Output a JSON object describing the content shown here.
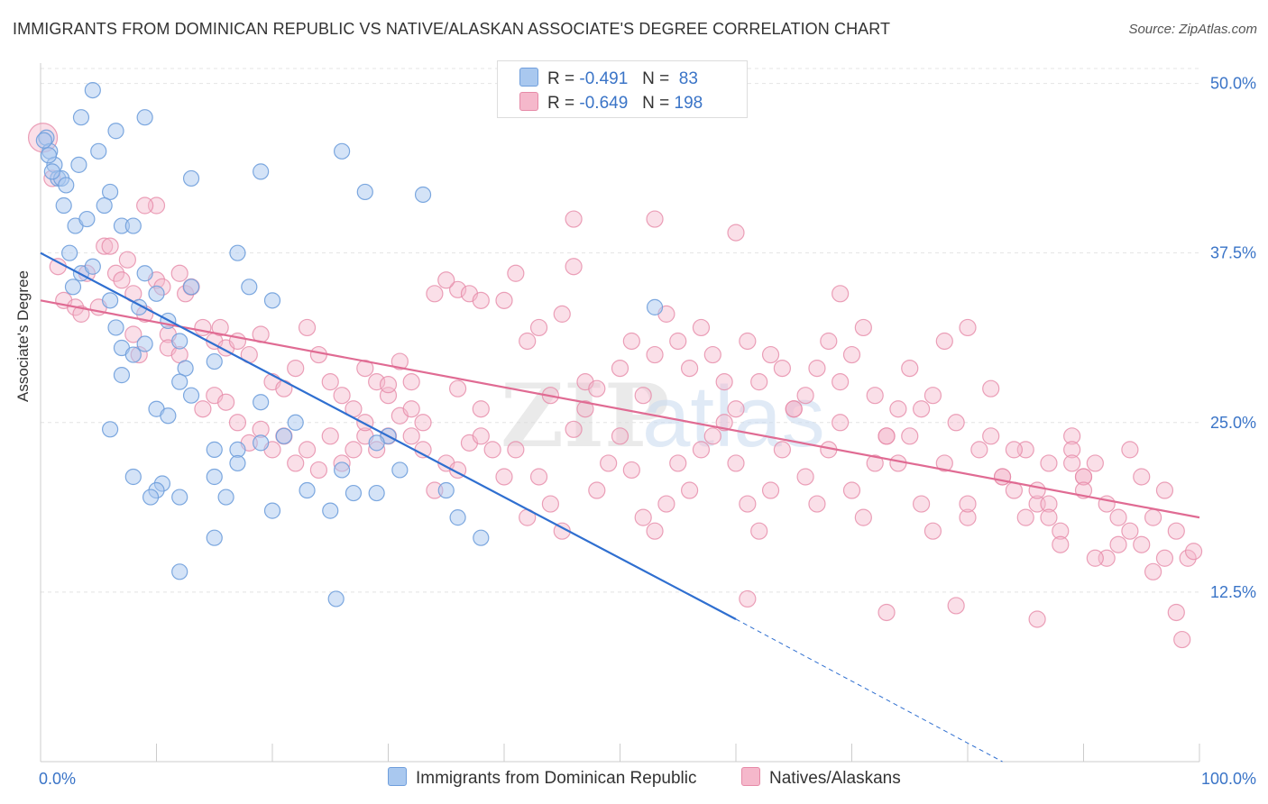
{
  "title": "IMMIGRANTS FROM DOMINICAN REPUBLIC VS NATIVE/ALASKAN ASSOCIATE'S DEGREE CORRELATION CHART",
  "source": "Source: ZipAtlas.com",
  "watermark": {
    "zip": "ZIP",
    "atlas": "atlas"
  },
  "colors": {
    "blue_fill": "#a9c8ef",
    "blue_stroke": "#6f9edc",
    "blue_line": "#2f6fd0",
    "pink_fill": "#f5b8cb",
    "pink_stroke": "#e68aa7",
    "pink_line": "#e06b93",
    "axis_text": "#3a74c7",
    "grid": "#e4e4e4"
  },
  "legend": {
    "rows": [
      {
        "r_label": "R =",
        "r_value": "-0.491",
        "n_label": "N =",
        "n_value": "83"
      },
      {
        "r_label": "R =",
        "r_value": "-0.649",
        "n_label": "N =",
        "n_value": "198"
      }
    ]
  },
  "chart_data": {
    "type": "scatter",
    "title": "IMMIGRANTS FROM DOMINICAN REPUBLIC VS NATIVE/ALASKAN ASSOCIATE'S DEGREE CORRELATION CHART",
    "xlabel": "",
    "ylabel": "Associate's Degree",
    "xlim": [
      0,
      100
    ],
    "ylim": [
      0,
      51.5
    ],
    "x_tick_labels": [
      "0.0%",
      "100.0%"
    ],
    "y_ticks": [
      12.5,
      25.0,
      37.5,
      50.0
    ],
    "y_tick_labels": [
      "12.5%",
      "25.0%",
      "37.5%",
      "50.0%"
    ],
    "series": [
      {
        "name": "Immigrants from Dominican Republic",
        "color": "blue",
        "trend": {
          "x0": 0,
          "y0": 37.5,
          "x1": 60,
          "y1": 10.5,
          "dash_to_x": 83,
          "dash_to_y": 0
        },
        "points": [
          [
            0.5,
            46
          ],
          [
            0.8,
            45
          ],
          [
            1.2,
            44
          ],
          [
            1.5,
            43
          ],
          [
            1.8,
            43
          ],
          [
            2,
            41
          ],
          [
            4.5,
            49.5
          ],
          [
            3.5,
            47.5
          ],
          [
            6.5,
            46.5
          ],
          [
            9,
            47.5
          ],
          [
            5,
            45
          ],
          [
            13,
            43
          ],
          [
            19,
            43.5
          ],
          [
            26,
            45
          ],
          [
            28,
            42
          ],
          [
            33,
            41.8
          ],
          [
            2.5,
            37.5
          ],
          [
            3,
            39.5
          ],
          [
            4,
            40
          ],
          [
            6,
            42
          ],
          [
            7,
            39.5
          ],
          [
            8,
            39.5
          ],
          [
            3.5,
            36
          ],
          [
            4.5,
            36.5
          ],
          [
            2.8,
            35
          ],
          [
            17,
            37.5
          ],
          [
            9,
            36
          ],
          [
            13,
            35
          ],
          [
            18,
            35
          ],
          [
            20,
            34
          ],
          [
            6,
            34
          ],
          [
            8.5,
            33.5
          ],
          [
            10,
            34.5
          ],
          [
            11,
            32.5
          ],
          [
            6.5,
            32
          ],
          [
            7,
            30.5
          ],
          [
            8,
            30
          ],
          [
            9,
            30.8
          ],
          [
            12,
            31
          ],
          [
            15,
            29.5
          ],
          [
            12.5,
            29
          ],
          [
            12,
            28
          ],
          [
            7,
            28.5
          ],
          [
            13,
            27
          ],
          [
            10,
            26
          ],
          [
            11,
            25.5
          ],
          [
            6,
            24.5
          ],
          [
            19,
            26.5
          ],
          [
            22,
            25
          ],
          [
            21,
            24
          ],
          [
            30,
            24
          ],
          [
            29,
            23.5
          ],
          [
            15,
            23
          ],
          [
            17,
            23
          ],
          [
            17,
            22
          ],
          [
            19,
            23.5
          ],
          [
            26,
            21.5
          ],
          [
            8,
            21
          ],
          [
            10.5,
            20.5
          ],
          [
            10,
            20
          ],
          [
            15,
            21
          ],
          [
            9.5,
            19.5
          ],
          [
            12,
            19.5
          ],
          [
            16,
            19.5
          ],
          [
            23,
            20
          ],
          [
            27,
            19.8
          ],
          [
            29,
            19.8
          ],
          [
            31,
            21.5
          ],
          [
            35,
            20
          ],
          [
            20,
            18.5
          ],
          [
            25,
            18.5
          ],
          [
            36,
            18
          ],
          [
            15,
            16.5
          ],
          [
            38,
            16.5
          ],
          [
            12,
            14
          ],
          [
            25.5,
            12
          ],
          [
            53,
            33.5
          ],
          [
            0.3,
            45.8
          ],
          [
            3.3,
            44
          ],
          [
            1,
            43.5
          ],
          [
            5.5,
            41
          ],
          [
            0.7,
            44.7
          ],
          [
            2.2,
            42.5
          ]
        ]
      },
      {
        "name": "Natives/Alaskans",
        "color": "pink",
        "trend": {
          "x0": 0,
          "y0": 34,
          "x1": 100,
          "y1": 18
        },
        "points": [
          [
            0.2,
            46
          ],
          [
            1,
            43
          ],
          [
            1.5,
            36.5
          ],
          [
            2,
            34
          ],
          [
            3,
            33.5
          ],
          [
            3.5,
            33
          ],
          [
            4,
            36
          ],
          [
            5,
            33.5
          ],
          [
            5.5,
            38
          ],
          [
            6,
            38
          ],
          [
            6.5,
            36
          ],
          [
            7,
            35.5
          ],
          [
            7.5,
            37
          ],
          [
            8,
            34.5
          ],
          [
            9,
            33
          ],
          [
            10,
            35.5
          ],
          [
            10.5,
            35
          ],
          [
            11,
            31.5
          ],
          [
            12,
            36
          ],
          [
            12.5,
            34.5
          ],
          [
            13,
            35
          ],
          [
            10,
            41
          ],
          [
            9,
            41
          ],
          [
            8,
            31.5
          ],
          [
            8.5,
            30
          ],
          [
            11,
            30.5
          ],
          [
            12,
            30
          ],
          [
            14,
            32
          ],
          [
            15,
            31
          ],
          [
            15.5,
            32
          ],
          [
            16,
            30.5
          ],
          [
            17,
            31
          ],
          [
            18,
            30
          ],
          [
            19,
            31.5
          ],
          [
            20,
            28
          ],
          [
            21,
            27.5
          ],
          [
            22,
            29
          ],
          [
            23,
            32
          ],
          [
            24,
            30
          ],
          [
            25,
            28
          ],
          [
            26,
            27
          ],
          [
            27,
            26
          ],
          [
            28,
            29
          ],
          [
            29,
            28
          ],
          [
            30,
            27
          ],
          [
            31,
            29.5
          ],
          [
            32,
            28
          ],
          [
            33,
            25
          ],
          [
            14,
            26
          ],
          [
            15,
            27
          ],
          [
            16,
            26.5
          ],
          [
            17,
            25
          ],
          [
            18,
            23.5
          ],
          [
            19,
            24.5
          ],
          [
            20,
            23
          ],
          [
            21,
            24
          ],
          [
            22,
            22
          ],
          [
            23,
            23
          ],
          [
            24,
            21.5
          ],
          [
            25,
            24
          ],
          [
            26,
            22
          ],
          [
            27,
            23
          ],
          [
            28,
            24
          ],
          [
            29,
            23
          ],
          [
            30,
            24
          ],
          [
            31,
            25.5
          ],
          [
            32,
            24
          ],
          [
            33,
            23
          ],
          [
            34,
            20
          ],
          [
            35,
            22
          ],
          [
            36,
            21.5
          ],
          [
            37,
            23.5
          ],
          [
            38,
            24
          ],
          [
            39,
            23
          ],
          [
            40,
            21
          ],
          [
            41,
            23
          ],
          [
            42,
            18
          ],
          [
            43,
            21
          ],
          [
            44,
            19
          ],
          [
            45,
            17
          ],
          [
            46,
            24.5
          ],
          [
            47,
            26
          ],
          [
            48,
            20
          ],
          [
            49,
            22
          ],
          [
            50,
            24
          ],
          [
            51,
            21.5
          ],
          [
            52,
            18
          ],
          [
            53,
            17
          ],
          [
            54,
            19
          ],
          [
            55,
            22
          ],
          [
            56,
            20
          ],
          [
            57,
            23
          ],
          [
            58,
            24
          ],
          [
            59,
            25
          ],
          [
            60,
            22
          ],
          [
            61,
            19
          ],
          [
            62,
            17
          ],
          [
            63,
            20
          ],
          [
            64,
            23
          ],
          [
            65,
            26
          ],
          [
            66,
            21
          ],
          [
            67,
            19
          ],
          [
            68,
            23
          ],
          [
            69,
            25
          ],
          [
            70,
            20
          ],
          [
            71,
            18
          ],
          [
            72,
            22
          ],
          [
            73,
            24
          ],
          [
            74,
            26
          ],
          [
            75,
            24
          ],
          [
            76,
            19
          ],
          [
            77,
            17
          ],
          [
            78,
            22
          ],
          [
            79,
            25
          ],
          [
            80,
            18
          ],
          [
            81,
            23
          ],
          [
            82,
            24
          ],
          [
            83,
            21
          ],
          [
            84,
            20
          ],
          [
            85,
            23
          ],
          [
            86,
            19
          ],
          [
            87,
            22
          ],
          [
            88,
            17
          ],
          [
            89,
            24
          ],
          [
            90,
            21
          ],
          [
            91,
            22
          ],
          [
            92,
            19
          ],
          [
            93,
            18
          ],
          [
            94,
            23
          ],
          [
            95,
            21
          ],
          [
            96,
            18
          ],
          [
            97,
            20
          ],
          [
            98,
            17
          ],
          [
            99,
            15
          ],
          [
            99.5,
            15.5
          ],
          [
            34,
            34.5
          ],
          [
            36,
            34.8
          ],
          [
            37,
            34.5
          ],
          [
            40,
            34
          ],
          [
            41,
            36
          ],
          [
            43,
            32
          ],
          [
            45,
            33
          ],
          [
            46,
            36.5
          ],
          [
            47,
            28
          ],
          [
            48,
            27.5
          ],
          [
            50,
            29
          ],
          [
            51,
            31
          ],
          [
            52,
            27
          ],
          [
            53,
            30
          ],
          [
            54,
            33
          ],
          [
            55,
            31
          ],
          [
            56,
            29
          ],
          [
            57,
            32
          ],
          [
            58,
            30
          ],
          [
            59,
            28
          ],
          [
            60,
            26
          ],
          [
            61,
            31
          ],
          [
            62,
            28
          ],
          [
            63,
            30
          ],
          [
            64,
            29
          ],
          [
            65,
            26
          ],
          [
            66,
            27
          ],
          [
            67,
            29
          ],
          [
            68,
            31
          ],
          [
            69,
            28
          ],
          [
            70,
            30
          ],
          [
            71,
            32
          ],
          [
            72,
            27
          ],
          [
            73,
            24
          ],
          [
            74,
            22
          ],
          [
            75,
            29
          ],
          [
            76,
            26
          ],
          [
            77,
            27
          ],
          [
            78,
            31
          ],
          [
            80,
            19
          ],
          [
            82,
            27.5
          ],
          [
            83,
            21
          ],
          [
            84,
            23
          ],
          [
            85,
            18
          ],
          [
            86,
            20
          ],
          [
            87,
            19
          ],
          [
            88,
            16
          ],
          [
            89,
            23
          ],
          [
            90,
            21
          ],
          [
            92,
            15
          ],
          [
            93,
            16
          ],
          [
            94,
            17
          ],
          [
            95,
            16
          ],
          [
            96,
            14
          ],
          [
            97,
            15
          ],
          [
            98,
            11
          ],
          [
            98.5,
            9
          ],
          [
            91,
            15
          ],
          [
            90,
            20
          ],
          [
            87,
            18
          ],
          [
            73,
            11
          ],
          [
            79,
            11.5
          ],
          [
            86,
            10.5
          ],
          [
            61,
            12
          ],
          [
            69,
            34.5
          ],
          [
            80,
            32
          ],
          [
            89,
            22
          ],
          [
            46,
            40
          ],
          [
            53,
            40
          ],
          [
            60,
            39
          ],
          [
            35,
            35.5
          ],
          [
            38,
            34
          ],
          [
            44,
            27
          ],
          [
            42,
            31
          ],
          [
            38,
            26
          ],
          [
            36,
            27.5
          ],
          [
            32,
            26
          ],
          [
            30,
            27.8
          ],
          [
            28,
            25
          ]
        ]
      }
    ]
  },
  "bottom_legend": {
    "items": [
      {
        "label": "Immigrants from Dominican Republic"
      },
      {
        "label": "Natives/Alaskans"
      }
    ]
  }
}
